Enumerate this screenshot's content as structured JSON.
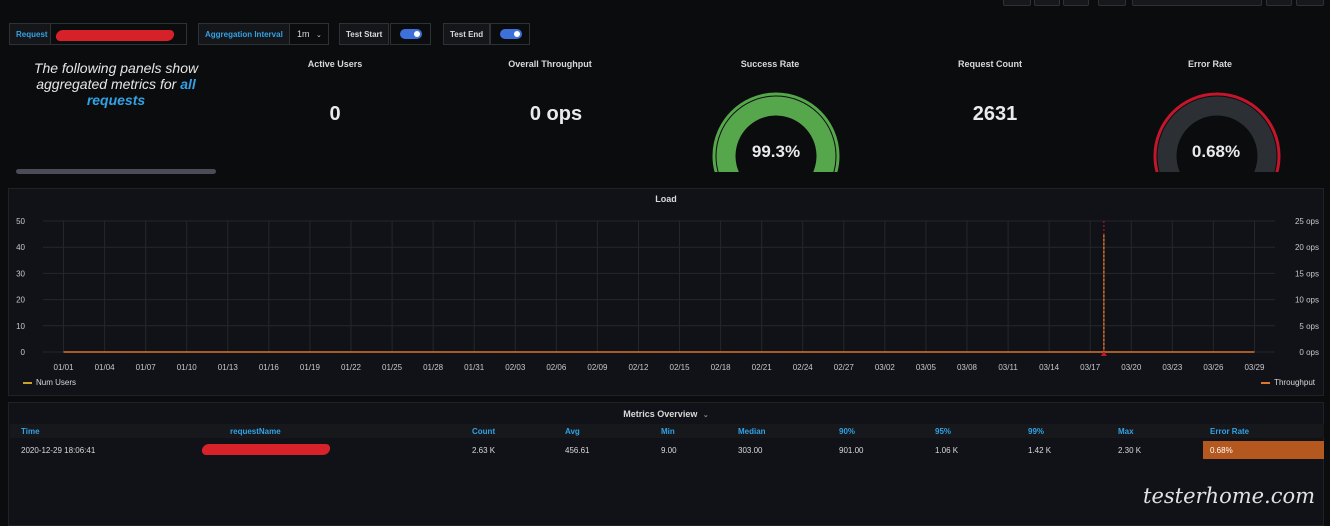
{
  "variables": {
    "request_label": "Request",
    "aggregation_label": "Aggregation Interval",
    "aggregation_value": "1m",
    "test_start_label": "Test Start",
    "test_end_label": "Test End"
  },
  "text_panel": {
    "line_before": "The following panels show aggregated metrics for ",
    "highlight": "all requests"
  },
  "stats": {
    "active_users": {
      "title": "Active Users",
      "value": "0"
    },
    "throughput": {
      "title": "Overall Throughput",
      "value": "0 ops"
    },
    "success_rate": {
      "title": "Success Rate",
      "value": "99.3%",
      "fraction": 0.993,
      "color": "#56a64b"
    },
    "request_count": {
      "title": "Request Count",
      "value": "2631"
    },
    "error_rate": {
      "title": "Error Rate",
      "value": "0.68%",
      "fraction": 0.0068,
      "color": "#e0752d"
    }
  },
  "load_panel": {
    "title": "Load",
    "left_legend": "Num Users",
    "right_legend": "Throughput"
  },
  "chart_data": {
    "type": "line",
    "title": "Load",
    "categories": [
      "01/01",
      "01/04",
      "01/07",
      "01/10",
      "01/13",
      "01/16",
      "01/19",
      "01/22",
      "01/25",
      "01/28",
      "01/31",
      "02/03",
      "02/06",
      "02/09",
      "02/12",
      "02/15",
      "02/18",
      "02/21",
      "02/24",
      "02/27",
      "03/02",
      "03/05",
      "03/08",
      "03/11",
      "03/14",
      "03/17",
      "03/20",
      "03/23",
      "03/26",
      "03/29"
    ],
    "y_left_ticks": [
      "0",
      "10",
      "20",
      "30",
      "40",
      "50"
    ],
    "y_left_range": [
      0,
      50
    ],
    "y_right_ticks": [
      "0 ops",
      "5 ops",
      "10 ops",
      "15 ops",
      "20 ops",
      "25 ops"
    ],
    "y_right_range": [
      0,
      25
    ],
    "series": [
      {
        "name": "Num Users",
        "axis": "left",
        "color": "#c9a22a",
        "x": [
          "01/01",
          "03/18",
          "03/18",
          "03/18",
          "03/29"
        ],
        "values": [
          0,
          0,
          45,
          0,
          0
        ]
      },
      {
        "name": "Throughput",
        "axis": "right",
        "color": "#e0752d",
        "x": [
          "01/01",
          "03/29"
        ],
        "values": [
          0,
          0
        ]
      }
    ],
    "grid": true,
    "legend": "bottom"
  },
  "metrics": {
    "title": "Metrics Overview",
    "headers": [
      "Time",
      "requestName",
      "Count",
      "Avg",
      "Min",
      "Median",
      "90%",
      "95%",
      "99%",
      "Max",
      "Error Rate"
    ],
    "rows": [
      {
        "time": "2020-12-29 18:06:41",
        "count": "2.63 K",
        "avg": "456.61",
        "min": "9.00",
        "median": "303.00",
        "p90": "901.00",
        "p95": "1.06 K",
        "p99": "1.42 K",
        "max": "2.30 K",
        "error_rate": "0.68%"
      }
    ],
    "error_cell_color": "#b5581f"
  },
  "watermark": "testerhome.com"
}
